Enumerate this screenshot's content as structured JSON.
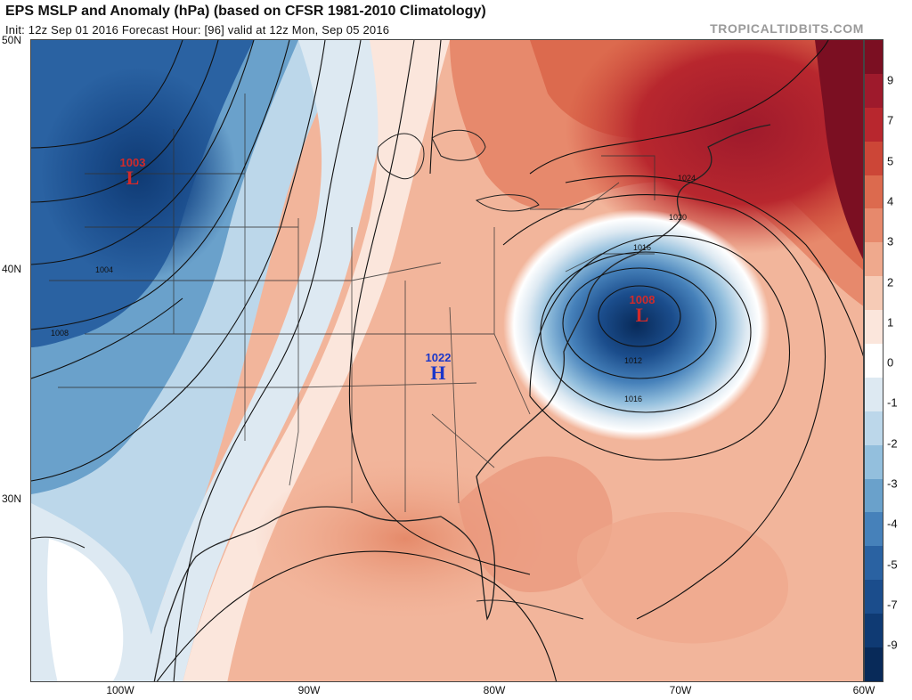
{
  "header": {
    "title": "EPS MSLP and Anomaly (hPa) (based on CFSR 1981-2010 Climatology)",
    "subtitle": "Init: 12z Sep 01 2016   Forecast Hour: [96]   valid at 12z Mon, Sep 05 2016",
    "brand": "TROPICALTIDBITS.COM"
  },
  "axes": {
    "lat_labels": [
      "50N",
      "40N",
      "30N"
    ],
    "lon_labels": [
      "100W",
      "90W",
      "80W",
      "70W",
      "60W"
    ]
  },
  "colorbar": {
    "labels": [
      "9",
      "7",
      "5",
      "4",
      "3",
      "2",
      "1",
      "0",
      "-1",
      "-2",
      "-3",
      "-4",
      "-5",
      "-7",
      "-9"
    ],
    "colors": [
      "#7b0f22",
      "#9e1a2c",
      "#b8272e",
      "#cc4637",
      "#dc6a4e",
      "#e7896c",
      "#efa98d",
      "#f6cbb6",
      "#fbe6dc",
      "#ffffff",
      "#dde9f2",
      "#bcd7ea",
      "#93bfdd",
      "#6aa1cb",
      "#4681ba",
      "#2a62a2",
      "#1b4d8c",
      "#0f3a73",
      "#082a59"
    ]
  },
  "pressure_centers": [
    {
      "value": "1003",
      "symbol": "L",
      "color": "#d12a2a"
    },
    {
      "value": "1022",
      "symbol": "H",
      "color": "#1a36c9"
    },
    {
      "value": "1008",
      "symbol": "L",
      "color": "#d12a2a"
    }
  ],
  "contour_labels": [
    "1024",
    "1020",
    "1016",
    "1012",
    "1016",
    "1004",
    "1008"
  ]
}
